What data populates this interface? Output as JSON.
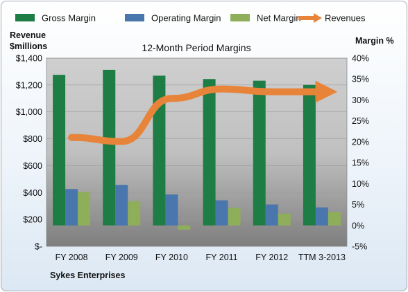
{
  "chart_data": {
    "type": "bar",
    "title": "12-Month Period Margins",
    "company": "Sykes Enterprises",
    "left_axis_label_line1": "Revenue",
    "left_axis_label_line2": "$millions",
    "right_axis_label": "Margin %",
    "categories": [
      "FY 2008",
      "FY 2009",
      "FY 2010",
      "FY 2011",
      "FY 2012",
      "TTM 3-2013"
    ],
    "left_ticks": [
      "$-",
      "$200",
      "$400",
      "$600",
      "$800",
      "$1,000",
      "$1,200",
      "$1,400"
    ],
    "right_ticks": [
      "-5%",
      "0%",
      "5%",
      "10%",
      "15%",
      "20%",
      "25%",
      "30%",
      "35%",
      "40%"
    ],
    "left_ylim": [
      0,
      1400
    ],
    "right_ylim": [
      -5,
      40
    ],
    "series": [
      {
        "name": "Gross Margin",
        "axis": "right",
        "color": "#1e7d45",
        "values": [
          36.0,
          37.2,
          35.8,
          35.0,
          34.6,
          33.6
        ]
      },
      {
        "name": "Operating Margin",
        "axis": "right",
        "color": "#4a76ae",
        "values": [
          8.7,
          9.7,
          7.4,
          6.0,
          5.0,
          4.3
        ]
      },
      {
        "name": "Net Margin",
        "axis": "right",
        "color": "#8eae5a",
        "values": [
          8.0,
          5.8,
          -1.0,
          4.2,
          2.8,
          3.2
        ]
      },
      {
        "name": "Revenues",
        "axis": "left",
        "color": "#e8843a",
        "values": [
          810,
          780,
          1100,
          1170,
          1150,
          1150
        ]
      }
    ],
    "legend_position": "top"
  }
}
